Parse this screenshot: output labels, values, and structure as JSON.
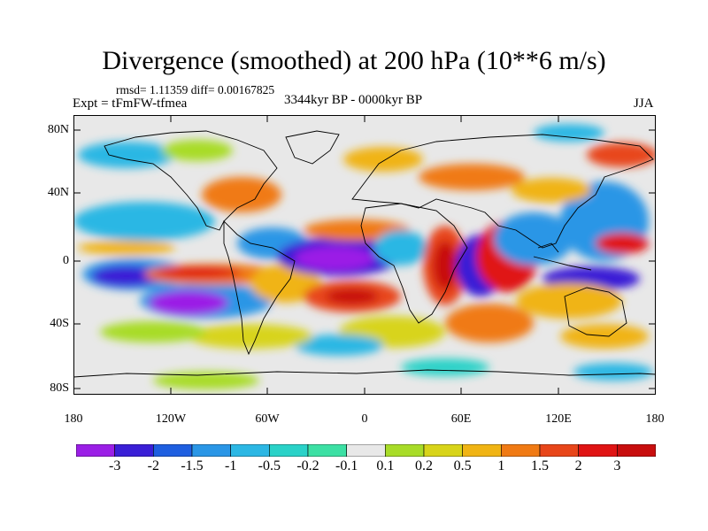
{
  "title": "Divergence (smoothed) at 200 hPa (10**6 m/s)",
  "stats": "rmsd= 1.11359 diff= 0.00167825",
  "experiment": "Expt = tFmFW-tfmea",
  "period": "3344kyr BP - 0000kyr BP",
  "season": "JJA",
  "axes": {
    "lat_labels": [
      "80N",
      "40N",
      "0",
      "40S",
      "80S"
    ],
    "lon_labels": [
      "180",
      "120W",
      "60W",
      "0",
      "60E",
      "120E",
      "180"
    ]
  },
  "colorbar": {
    "labels": [
      "-3",
      "-2",
      "-1.5",
      "-1",
      "-0.5",
      "-0.2",
      "-0.1",
      "0.1",
      "0.2",
      "0.5",
      "1",
      "1.5",
      "2",
      "3"
    ],
    "colors": [
      "#9b1fe6",
      "#3a1fd6",
      "#1f5fe0",
      "#2a96e6",
      "#2cb7e4",
      "#2ad2c8",
      "#3ce0a4",
      "#e8e8e8",
      "#a8dc28",
      "#d8d41a",
      "#f0b414",
      "#f07a14",
      "#e8461a",
      "#e01414",
      "#c80e0e"
    ]
  },
  "colors": {
    "background": "#ffffff",
    "neutral": "#e8e8e8",
    "coastline": "#000000"
  }
}
